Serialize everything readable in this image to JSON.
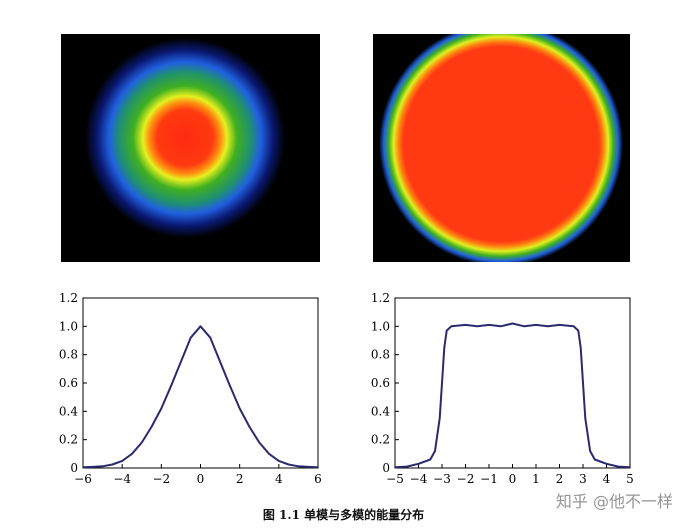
{
  "images": [
    {
      "name": "single-mode-beam-image",
      "profile": "gaussian"
    },
    {
      "name": "multi-mode-beam-image",
      "profile": "flat-top"
    }
  ],
  "colormap": [
    "#000000",
    "#1020a0",
    "#2060e0",
    "#20a060",
    "#30b020",
    "#e0f020",
    "#ff8010",
    "#ff3010"
  ],
  "chart_data": [
    {
      "type": "line",
      "name": "single-mode-profile",
      "xlim": [
        -6,
        6
      ],
      "ylim": [
        0,
        1.2
      ],
      "xticks": [
        -6,
        -4,
        -2,
        0,
        2,
        4,
        6
      ],
      "yticks": [
        0,
        0.2,
        0.4,
        0.6,
        0.8,
        1.0,
        1.2
      ],
      "xtick_labels": [
        "−6",
        "−4",
        "−2",
        "0",
        "2",
        "4",
        "6"
      ],
      "ytick_labels": [
        "0",
        "0.2",
        "0.4",
        "0.6",
        "0.8",
        "1.0",
        "1.2"
      ],
      "series": [
        {
          "color": "#2a2a70",
          "x": [
            -6,
            -5.5,
            -5,
            -4.5,
            -4,
            -3.5,
            -3,
            -2.5,
            -2,
            -1.5,
            -1,
            -0.5,
            0,
            0.5,
            1,
            1.5,
            2,
            2.5,
            3,
            3.5,
            4,
            4.5,
            5,
            5.5,
            6
          ],
          "y": [
            0.005,
            0.008,
            0.012,
            0.025,
            0.05,
            0.1,
            0.18,
            0.29,
            0.42,
            0.58,
            0.75,
            0.92,
            1.0,
            0.92,
            0.75,
            0.58,
            0.42,
            0.29,
            0.18,
            0.1,
            0.05,
            0.025,
            0.012,
            0.008,
            0.005
          ]
        }
      ],
      "grid": false
    },
    {
      "type": "line",
      "name": "multi-mode-profile",
      "xlim": [
        -5,
        5
      ],
      "ylim": [
        0,
        1.2
      ],
      "xticks": [
        -5,
        -4,
        -3,
        -2,
        -1,
        0,
        1,
        2,
        3,
        4,
        5
      ],
      "yticks": [
        0,
        0.2,
        0.4,
        0.6,
        0.8,
        1.0,
        1.2
      ],
      "xtick_labels": [
        "−5",
        "−4",
        "−3",
        "−2",
        "−1",
        "0",
        "1",
        "2",
        "3",
        "4",
        "5"
      ],
      "ytick_labels": [
        "0",
        "0.2",
        "0.4",
        "0.6",
        "0.8",
        "1.0",
        "1.2"
      ],
      "series": [
        {
          "color": "#2a2a70",
          "x": [
            -5,
            -4.5,
            -4,
            -3.5,
            -3.3,
            -3.1,
            -3,
            -2.9,
            -2.8,
            -2.6,
            -2,
            -1.5,
            -1,
            -0.5,
            0,
            0.5,
            1,
            1.5,
            2,
            2.6,
            2.8,
            2.9,
            3,
            3.1,
            3.3,
            3.5,
            4,
            4.5,
            5
          ],
          "y": [
            0.005,
            0.01,
            0.03,
            0.06,
            0.12,
            0.35,
            0.6,
            0.85,
            0.97,
            1.0,
            1.01,
            1.0,
            1.01,
            1.0,
            1.02,
            1.0,
            1.01,
            1.0,
            1.01,
            1.0,
            0.97,
            0.85,
            0.6,
            0.35,
            0.12,
            0.06,
            0.03,
            0.01,
            0.005
          ]
        }
      ],
      "grid": false
    }
  ],
  "caption": "图 1.1    单模与多模的能量分布",
  "watermark": "知乎 @他不一样"
}
